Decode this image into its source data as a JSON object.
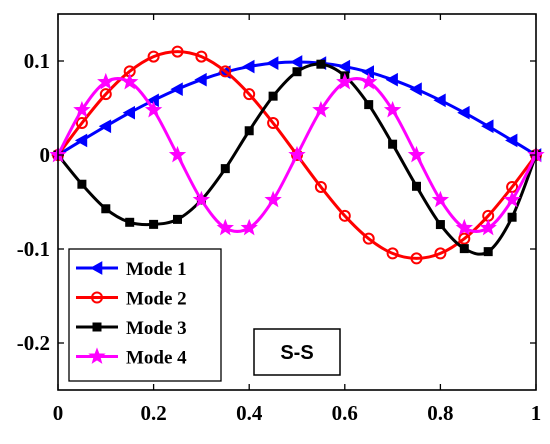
{
  "chart_data": {
    "type": "line",
    "title": "",
    "xlabel": "",
    "ylabel": "",
    "xlim": [
      0,
      1
    ],
    "ylim": [
      -0.25,
      0.15
    ],
    "xticks": [
      0,
      0.2,
      0.4,
      0.6,
      0.8,
      1
    ],
    "xtick_labels": [
      "0",
      "0.2",
      "0.4",
      "0.6",
      "0.8",
      "1"
    ],
    "yticks": [
      -0.2,
      -0.1,
      0,
      0.1
    ],
    "ytick_labels": [
      "-0.2",
      "-0.1",
      "0",
      "0.1"
    ],
    "grid": false,
    "legend_position": "lower-left",
    "annotation": "S-S",
    "x": [
      0,
      0.05,
      0.1,
      0.15,
      0.2,
      0.25,
      0.3,
      0.35,
      0.4,
      0.45,
      0.5,
      0.55,
      0.6,
      0.65,
      0.7,
      0.75,
      0.8,
      0.85,
      0.9,
      0.95,
      1
    ],
    "series": [
      {
        "name": "Mode 1",
        "color": "#0000ff",
        "marker": "triangle-left",
        "values": [
          0,
          0.0155,
          0.0306,
          0.045,
          0.0582,
          0.07,
          0.0801,
          0.0882,
          0.0941,
          0.0977,
          0.0989,
          0.0977,
          0.0941,
          0.0882,
          0.0801,
          0.07,
          0.0582,
          0.045,
          0.0306,
          0.0155,
          0
        ]
      },
      {
        "name": "Mode 2",
        "color": "#ff0000",
        "marker": "circle",
        "values": [
          0,
          0.034,
          0.0647,
          0.089,
          0.1047,
          0.11,
          0.1047,
          0.089,
          0.0647,
          0.034,
          0,
          -0.034,
          -0.0647,
          -0.089,
          -0.1047,
          -0.11,
          -0.1047,
          -0.089,
          -0.0647,
          -0.034,
          0
        ]
      },
      {
        "name": "Mode 3",
        "color": "#000000",
        "marker": "square",
        "values": [
          0,
          -0.0311,
          -0.0572,
          -0.0716,
          -0.0738,
          -0.0685,
          -0.0479,
          -0.0145,
          0.0258,
          0.0626,
          0.0886,
          0.0966,
          0.0842,
          0.0536,
          0.0115,
          -0.0333,
          -0.074,
          -0.0996,
          -0.1028,
          -0.0662,
          0
        ]
      },
      {
        "name": "Mode 4",
        "color": "#ff00ff",
        "marker": "star",
        "values": [
          0,
          0.0478,
          0.0776,
          0.0776,
          0.0478,
          0,
          -0.0478,
          -0.0776,
          -0.0776,
          -0.0478,
          0,
          0.0478,
          0.0776,
          0.0776,
          0.0478,
          0,
          -0.0478,
          -0.0776,
          -0.0776,
          -0.0478,
          0
        ]
      }
    ]
  }
}
